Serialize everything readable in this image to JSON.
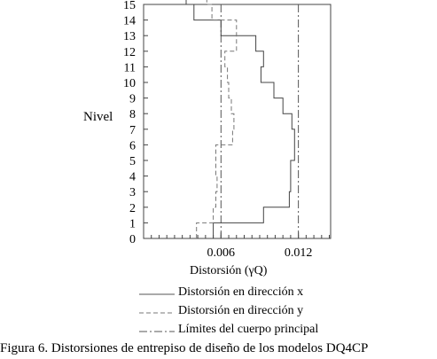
{
  "chart_data": {
    "type": "line",
    "ylabel": "Nivel",
    "xlabel": "Distorsión   (γQ)",
    "xlim": [
      0,
      0.0145
    ],
    "ylim": [
      0,
      15
    ],
    "x_ticks": [
      {
        "value": 0.006,
        "label": "0.006"
      },
      {
        "value": 0.012,
        "label": "0.012"
      }
    ],
    "y_ticks": [
      "0",
      "1",
      "2",
      "3",
      "4",
      "5",
      "6",
      "7",
      "8",
      "9",
      "10",
      "11",
      "12",
      "13",
      "14",
      "15"
    ],
    "grid": false,
    "limits": [
      0.006,
      0.012
    ],
    "series": [
      {
        "name": "Distorsión en dirección x",
        "style": "solid",
        "values": [
          0.0054,
          0.0093,
          0.0113,
          0.0114,
          0.0114,
          0.0117,
          0.0117,
          0.0115,
          0.0108,
          0.0101,
          0.0091,
          0.0093,
          0.0087,
          0.006,
          0.0039,
          0.0033
        ]
      },
      {
        "name": "Distorsión en dirección y",
        "style": "dashed",
        "values": [
          0.0041,
          0.0054,
          0.0056,
          0.0057,
          0.0056,
          0.0056,
          0.0069,
          0.007,
          0.0068,
          0.0066,
          0.0065,
          0.0063,
          0.0072,
          0.0072,
          0.0053,
          0.0049
        ]
      }
    ]
  },
  "legend": {
    "x_label": "Distorsión en dirección x",
    "y_label": "Distorsión en dirección y",
    "limit_label": "Límites del cuerpo principal"
  },
  "caption": "Figura 6. Distorsiones de entrepiso de diseño de los modelos DQ4CP"
}
